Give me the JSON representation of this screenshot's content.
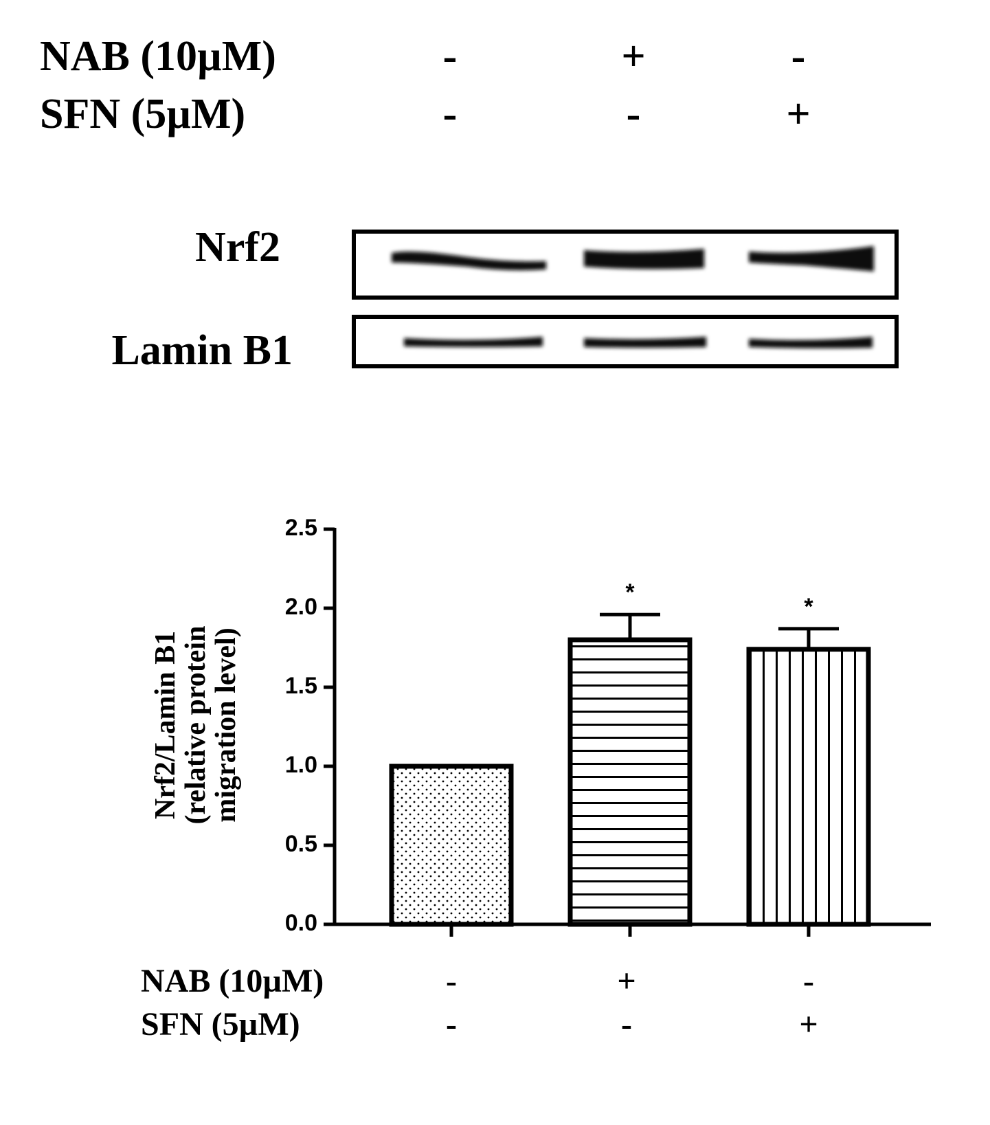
{
  "blot": {
    "treatments": [
      {
        "label": "NAB (10µM)",
        "signs": [
          "-",
          "+",
          "-"
        ]
      },
      {
        "label": "SFN (5µM)",
        "signs": [
          "-",
          "-",
          "+"
        ]
      }
    ],
    "bands": [
      "Nrf2",
      "Lamin B1"
    ]
  },
  "chart_data": {
    "type": "bar",
    "ylabel": [
      "Nrf2/Lamin B1",
      "(relative protein",
      "migration level)"
    ],
    "categories": [
      null,
      null,
      null
    ],
    "values": [
      1.0,
      1.8,
      1.74
    ],
    "errors": [
      null,
      0.16,
      0.13
    ],
    "annotations": [
      null,
      "*",
      "*"
    ],
    "patterns": [
      "dots",
      "hlines",
      "vlines"
    ],
    "ylim": [
      0,
      2.5
    ],
    "yticks": [
      {
        "value": 0,
        "label": "0.0"
      },
      0.5,
      {
        "value": 1,
        "label": "1.0"
      },
      1.5,
      {
        "value": 2,
        "label": "2.0"
      },
      2.5
    ],
    "treatments": [
      {
        "label": "NAB (10µM)",
        "signs": [
          "-",
          "+",
          "-"
        ]
      },
      {
        "label": "SFN (5µM)",
        "signs": [
          "-",
          "-",
          "+"
        ]
      }
    ]
  }
}
